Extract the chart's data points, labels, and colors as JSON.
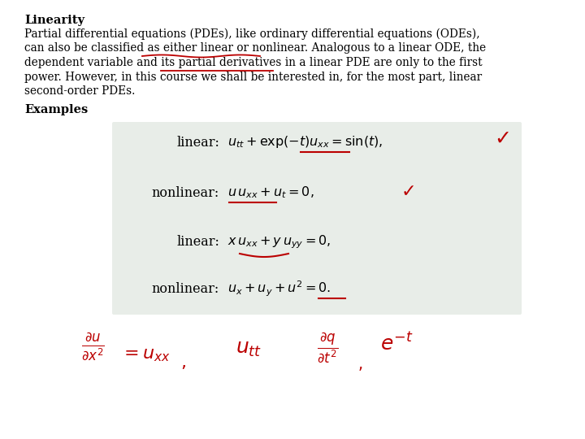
{
  "bg_color": "#ffffff",
  "title_bold": "Linearity",
  "paragraph_lines": [
    "Partial differential equations (PDEs), like ordinary differential equations (ODEs),",
    "can also be classified as either linear or nonlinear. Analogous to a linear ODE, the",
    "dependent variable and its partial derivatives in a linear PDE are only to the first",
    "power. However, in this course we shall be interested in, for the most part, linear",
    "second-order PDEs."
  ],
  "examples_label": "Examples",
  "box_bg": "#e8ede8",
  "red_color": "#bb0000",
  "text_color": "#000000",
  "font_size_title": 10.5,
  "font_size_body": 9.8,
  "font_size_eq": 11.5,
  "font_size_label": 11.5,
  "font_size_hand": 14
}
